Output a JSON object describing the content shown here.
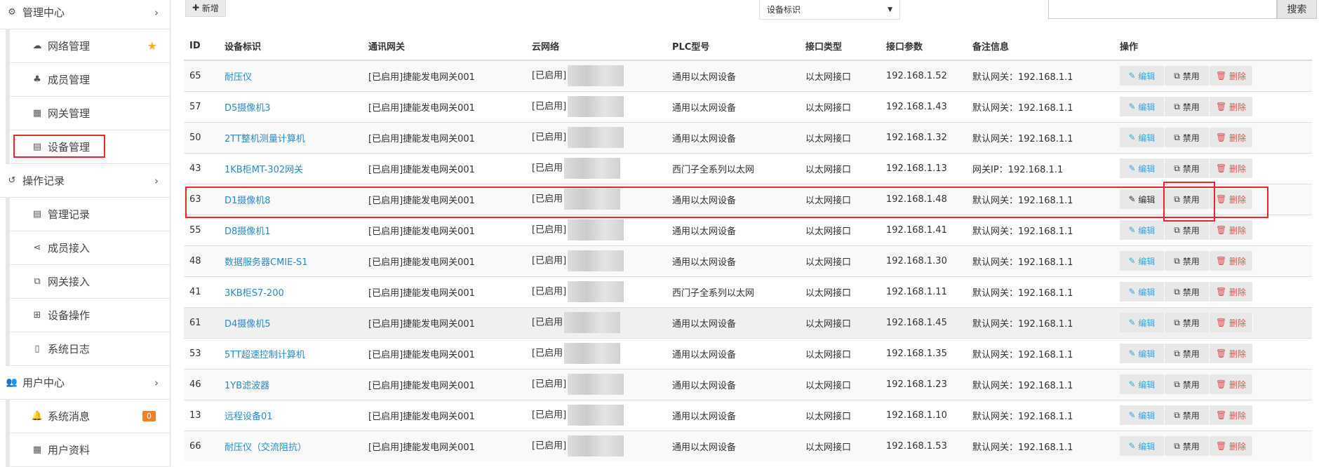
{
  "sidebar": {
    "groups": [
      {
        "label": "管理中心",
        "icon": "gears-icon",
        "items": [
          {
            "label": "网络管理",
            "icon": "cloud-icon",
            "star": true
          },
          {
            "label": "成员管理",
            "icon": "sitemap-icon"
          },
          {
            "label": "网关管理",
            "icon": "grid-icon"
          },
          {
            "label": "设备管理",
            "icon": "calendar-icon",
            "highlighted": true
          }
        ]
      },
      {
        "label": "操作记录",
        "icon": "history-icon",
        "items": [
          {
            "label": "管理记录",
            "icon": "file-text-icon"
          },
          {
            "label": "成员接入",
            "icon": "share-icon"
          },
          {
            "label": "网关接入",
            "icon": "share-square-icon"
          },
          {
            "label": "设备操作",
            "icon": "plus-square-icon"
          },
          {
            "label": "系统日志",
            "icon": "file-icon"
          }
        ]
      },
      {
        "label": "用户中心",
        "icon": "users-icon",
        "items": [
          {
            "label": "系统消息",
            "icon": "bell-icon",
            "badge": "0"
          },
          {
            "label": "用户资料",
            "icon": "th-large-icon"
          }
        ]
      }
    ]
  },
  "toolbar": {
    "add_label": "新增",
    "select_value": "设备标识",
    "search_placeholder": "",
    "search_label": "搜索"
  },
  "table": {
    "headers": [
      "ID",
      "设备标识",
      "通讯网关",
      "云网络",
      "PLC型号",
      "接口类型",
      "接口参数",
      "备注信息",
      "操作"
    ],
    "rows": [
      {
        "id": "65",
        "name": "耐压仪",
        "gw": "[已启用]捷能发电网关001",
        "cloud": "[已启用]",
        "plc": "通用以太网设备",
        "itype": "以太网接口",
        "param": "192.168.1.52",
        "note": "默认网关：192.168.1.1"
      },
      {
        "id": "57",
        "name": "D5摄像机3",
        "gw": "[已启用]捷能发电网关001",
        "cloud": "[已启用]",
        "plc": "通用以太网设备",
        "itype": "以太网接口",
        "param": "192.168.1.43",
        "note": "默认网关：192.168.1.1"
      },
      {
        "id": "50",
        "name": "2TT整机测量计算机",
        "gw": "[已启用]捷能发电网关001",
        "cloud": "[已启用]",
        "plc": "通用以太网设备",
        "itype": "以太网接口",
        "param": "192.168.1.32",
        "note": "默认网关：192.168.1.1"
      },
      {
        "id": "43",
        "name": "1KB柜MT-302网关",
        "gw": "[已启用]捷能发电网关001",
        "cloud": "[已启用",
        "plc": "西门子全系列以太网",
        "itype": "以太网接口",
        "param": "192.168.1.13",
        "note": "网关IP：192.168.1.1"
      },
      {
        "id": "63",
        "name": "D1摄像机8",
        "gw": "[已启用]捷能发电网关001",
        "cloud": "[已启用",
        "plc": "通用以太网设备",
        "itype": "以太网接口",
        "param": "192.168.1.48",
        "note": "默认网关：192.168.1.1"
      },
      {
        "id": "55",
        "name": "D8摄像机1",
        "gw": "[已启用]捷能发电网关001",
        "cloud": "[已启用]",
        "plc": "通用以太网设备",
        "itype": "以太网接口",
        "param": "192.168.1.41",
        "note": "默认网关：192.168.1.1"
      },
      {
        "id": "48",
        "name": "数据服务器CMIE-S1",
        "gw": "[已启用]捷能发电网关001",
        "cloud": "[已启用]",
        "plc": "通用以太网设备",
        "itype": "以太网接口",
        "param": "192.168.1.30",
        "note": "默认网关：192.168.1.1"
      },
      {
        "id": "41",
        "name": "3KB柜S7-200",
        "gw": "[已启用]捷能发电网关001",
        "cloud": "[已启用]",
        "plc": "西门子全系列以太网",
        "itype": "以太网接口",
        "param": "192.168.1.11",
        "note": "默认网关：192.168.1.1"
      },
      {
        "id": "61",
        "name": "D4摄像机5",
        "gw": "[已启用]捷能发电网关001",
        "cloud": "[已启用",
        "plc": "通用以太网设备",
        "itype": "以太网接口",
        "param": "192.168.1.45",
        "note": "默认网关：192.168.1.1"
      },
      {
        "id": "53",
        "name": "5TT超速控制计算机",
        "gw": "[已启用]捷能发电网关001",
        "cloud": "[已启用",
        "plc": "通用以太网设备",
        "itype": "以太网接口",
        "param": "192.168.1.35",
        "note": "默认网关：192.168.1.1"
      },
      {
        "id": "46",
        "name": "1YB滤波器",
        "gw": "[已启用]捷能发电网关001",
        "cloud": "[已启用]",
        "plc": "通用以太网设备",
        "itype": "以太网接口",
        "param": "192.168.1.23",
        "note": "默认网关：192.168.1.1"
      },
      {
        "id": "13",
        "name": "远程设备01",
        "gw": "[已启用]捷能发电网关001",
        "cloud": "[已启用]",
        "plc": "通用以太网设备",
        "itype": "以太网接口",
        "param": "192.168.1.10",
        "note": "默认网关：192.168.1.1"
      },
      {
        "id": "66",
        "name": "耐压仪（交流阻抗）",
        "gw": "[已启用]捷能发电网关001",
        "cloud": "[已启用]",
        "plc": "通用以太网设备",
        "itype": "以太网接口",
        "param": "192.168.1.53",
        "note": "默认网关：192.168.1.1"
      }
    ],
    "actions": {
      "edit": "编辑",
      "disable": "禁用",
      "delete": "删除"
    }
  },
  "colors": {
    "link": "#2a8bc7",
    "delete": "#d9534f",
    "highlight": "#e8262b",
    "badge": "#f0832a",
    "star": "#f5b021"
  }
}
